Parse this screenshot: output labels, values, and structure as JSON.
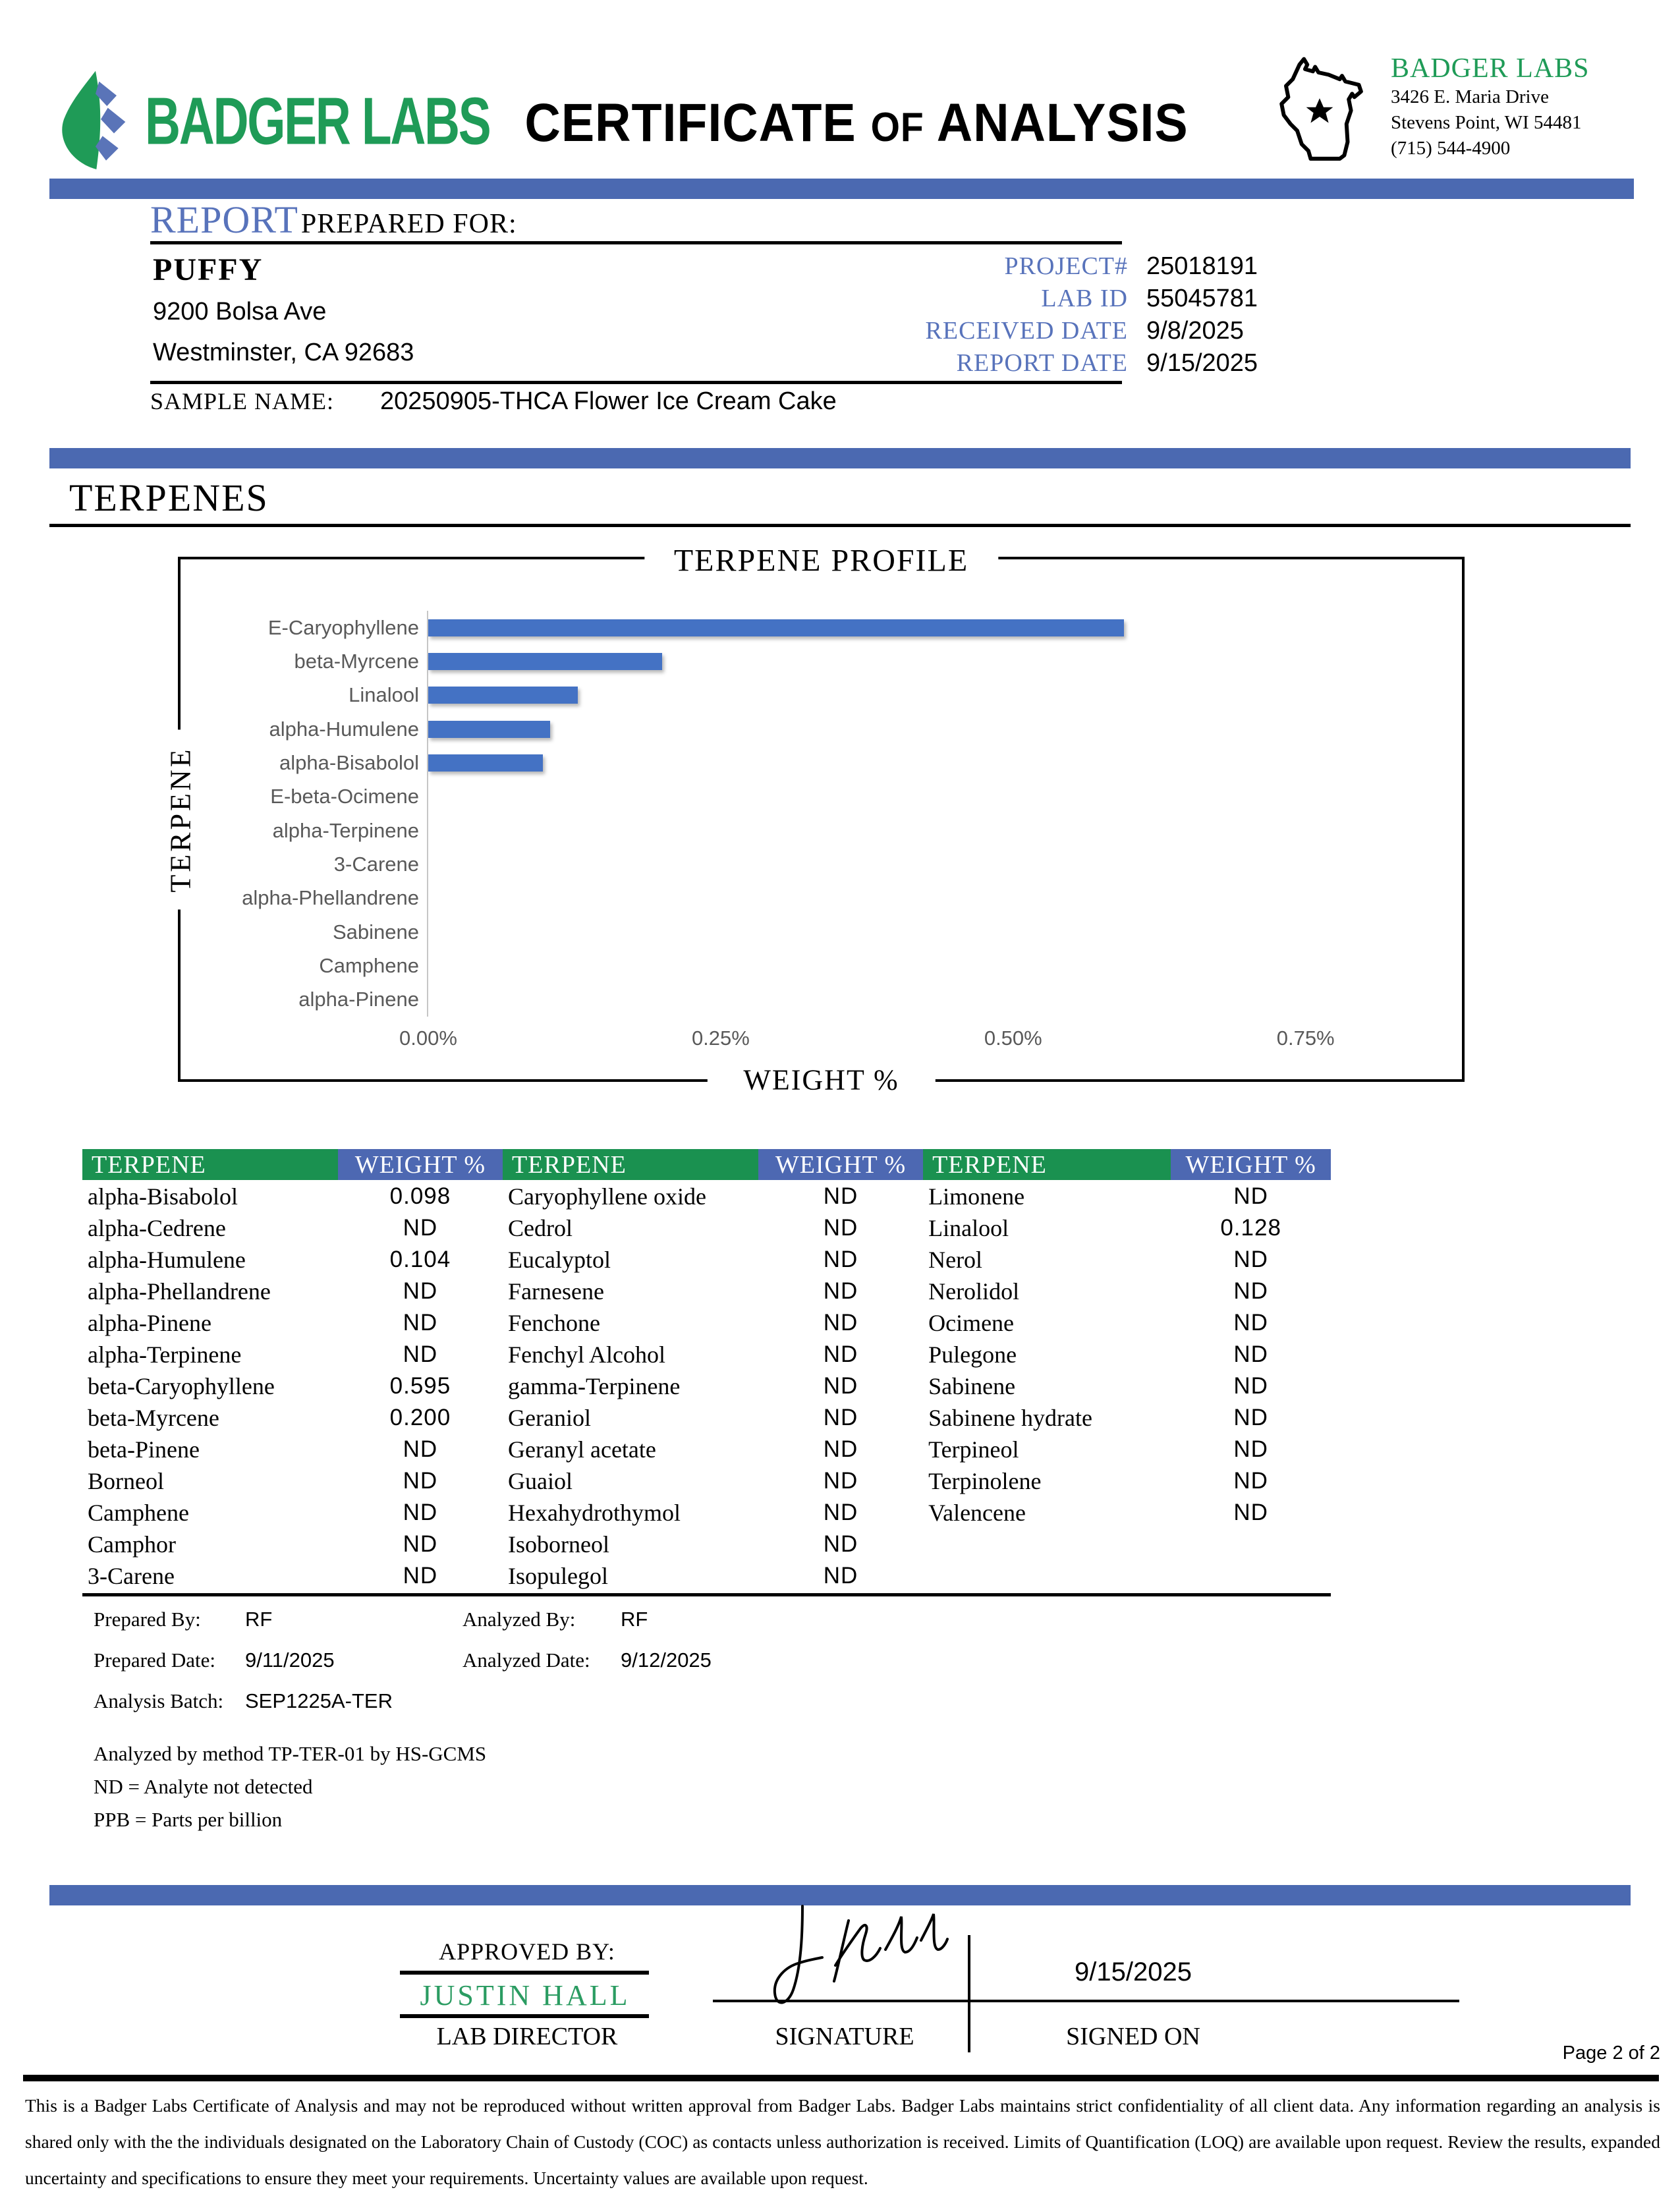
{
  "header": {
    "logo_text": "BADGER LABS",
    "title_certificate": "CERTIFICATE",
    "title_of": "OF",
    "title_analysis": "ANALYSIS",
    "lab_name": "BADGER LABS",
    "address_line1": "3426 E. Maria Drive",
    "address_line2": "Stevens Point, WI 54481",
    "phone": "(715) 544-4900"
  },
  "report": {
    "section_label": "REPORT",
    "section_sublabel": "PREPARED FOR:",
    "client_name": "PUFFY",
    "client_address1": "9200 Bolsa Ave",
    "client_address2": "Westminster, CA 92683",
    "fields": [
      {
        "label": "PROJECT#",
        "value": "25018191"
      },
      {
        "label": "LAB ID",
        "value": "55045781"
      },
      {
        "label": "RECEIVED DATE",
        "value": "9/8/2025"
      },
      {
        "label": "REPORT DATE",
        "value": "9/15/2025"
      }
    ],
    "sample_name_label": "SAMPLE NAME:",
    "sample_name": "20250905-THCA Flower Ice Cream Cake"
  },
  "section_title": "TERPENES",
  "chart_data": {
    "type": "bar",
    "orientation": "horizontal",
    "title": "TERPENE PROFILE",
    "xlabel": "WEIGHT %",
    "ylabel": "TERPENE",
    "categories": [
      "E-Caryophyllene",
      "beta-Myrcene",
      "Linalool",
      "alpha-Humulene",
      "alpha-Bisabolol",
      "E-beta-Ocimene",
      "alpha-Terpinene",
      "3-Carene",
      "alpha-Phellandrene",
      "Sabinene",
      "Camphene",
      "alpha-Pinene"
    ],
    "values": [
      0.595,
      0.2,
      0.128,
      0.104,
      0.098,
      0,
      0,
      0,
      0,
      0,
      0,
      0
    ],
    "xlim": [
      0,
      0.86
    ],
    "ticks": [
      "0.00%",
      "0.25%",
      "0.50%",
      "0.75%"
    ],
    "tick_values": [
      0,
      0.25,
      0.5,
      0.75
    ],
    "bar_color": "#4472c4",
    "grid": false,
    "legend": "none"
  },
  "table": {
    "name_header": "TERPENE",
    "weight_header": "WEIGHT %",
    "groups": [
      {
        "rows": [
          {
            "name": "alpha-Bisabolol",
            "value": "0.098"
          },
          {
            "name": "alpha-Cedrene",
            "value": "ND"
          },
          {
            "name": "alpha-Humulene",
            "value": "0.104"
          },
          {
            "name": "alpha-Phellandrene",
            "value": "ND"
          },
          {
            "name": "alpha-Pinene",
            "value": "ND"
          },
          {
            "name": "alpha-Terpinene",
            "value": "ND"
          },
          {
            "name": "beta-Caryophyllene",
            "value": "0.595"
          },
          {
            "name": "beta-Myrcene",
            "value": "0.200"
          },
          {
            "name": "beta-Pinene",
            "value": "ND"
          },
          {
            "name": "Borneol",
            "value": "ND"
          },
          {
            "name": "Camphene",
            "value": "ND"
          },
          {
            "name": "Camphor",
            "value": "ND"
          },
          {
            "name": "3-Carene",
            "value": "ND"
          }
        ]
      },
      {
        "rows": [
          {
            "name": "Caryophyllene oxide",
            "value": "ND"
          },
          {
            "name": "Cedrol",
            "value": "ND"
          },
          {
            "name": "Eucalyptol",
            "value": "ND"
          },
          {
            "name": "Farnesene",
            "value": "ND"
          },
          {
            "name": "Fenchone",
            "value": "ND"
          },
          {
            "name": "Fenchyl Alcohol",
            "value": "ND"
          },
          {
            "name": "gamma-Terpinene",
            "value": "ND"
          },
          {
            "name": "Geraniol",
            "value": "ND"
          },
          {
            "name": "Geranyl acetate",
            "value": "ND"
          },
          {
            "name": "Guaiol",
            "value": "ND"
          },
          {
            "name": "Hexahydrothymol",
            "value": "ND"
          },
          {
            "name": "Isoborneol",
            "value": "ND"
          },
          {
            "name": "Isopulegol",
            "value": "ND"
          }
        ]
      },
      {
        "rows": [
          {
            "name": "Limonene",
            "value": "ND"
          },
          {
            "name": "Linalool",
            "value": "0.128"
          },
          {
            "name": "Nerol",
            "value": "ND"
          },
          {
            "name": "Nerolidol",
            "value": "ND"
          },
          {
            "name": "Ocimene",
            "value": "ND"
          },
          {
            "name": "Pulegone",
            "value": "ND"
          },
          {
            "name": "Sabinene",
            "value": "ND"
          },
          {
            "name": "Sabinene hydrate",
            "value": "ND"
          },
          {
            "name": "Terpineol",
            "value": "ND"
          },
          {
            "name": "Terpinolene",
            "value": "ND"
          },
          {
            "name": "Valencene",
            "value": "ND"
          }
        ]
      }
    ]
  },
  "analysis": {
    "prepared_by_label": "Prepared By:",
    "prepared_by": "RF",
    "analyzed_by_label": "Analyzed By:",
    "analyzed_by": "RF",
    "prepared_date_label": "Prepared Date:",
    "prepared_date": "9/11/2025",
    "analyzed_date_label": "Analyzed Date:",
    "analyzed_date": "9/12/2025",
    "batch_label": "Analysis Batch:",
    "batch": "SEP1225A-TER",
    "method_note": "Analyzed by method TP-TER-01 by HS-GCMS",
    "nd_note": "ND = Analyte not detected",
    "ppb_note": "PPB = Parts per billion"
  },
  "approval": {
    "approved_by_label": "APPROVED BY:",
    "approver": "JUSTIN HALL",
    "approver_title": "LAB DIRECTOR",
    "signature_label": "SIGNATURE",
    "signed_on_label": "SIGNED ON",
    "signed_date": "9/15/2025"
  },
  "footer": {
    "page": "Page 2 of 2",
    "disclaimer": "This is a Badger Labs Certificate of Analysis and may not be reproduced without written approval from Badger Labs. Badger Labs maintains strict confidentiality of all client data. Any information regarding an analysis is shared only with the the individuals designated on the Laboratory Chain of Custody (COC) as contacts unless authorization is received. Limits of Quantification (LOQ) are available upon request. Review the results, expanded uncertainty and specifications to ensure they meet your requirements. Uncertainty values are available upon request."
  },
  "colors": {
    "accent_blue_bar": "#4b69b1",
    "label_blue": "#5873bb",
    "brand_green": "#1f9b57",
    "table_header_green": "#1a9150",
    "table_header_blue": "#4d68b2",
    "chart_bar_blue": "#4472c4",
    "approver_green": "#2b9c62",
    "chart_text_gray": "#595959"
  }
}
